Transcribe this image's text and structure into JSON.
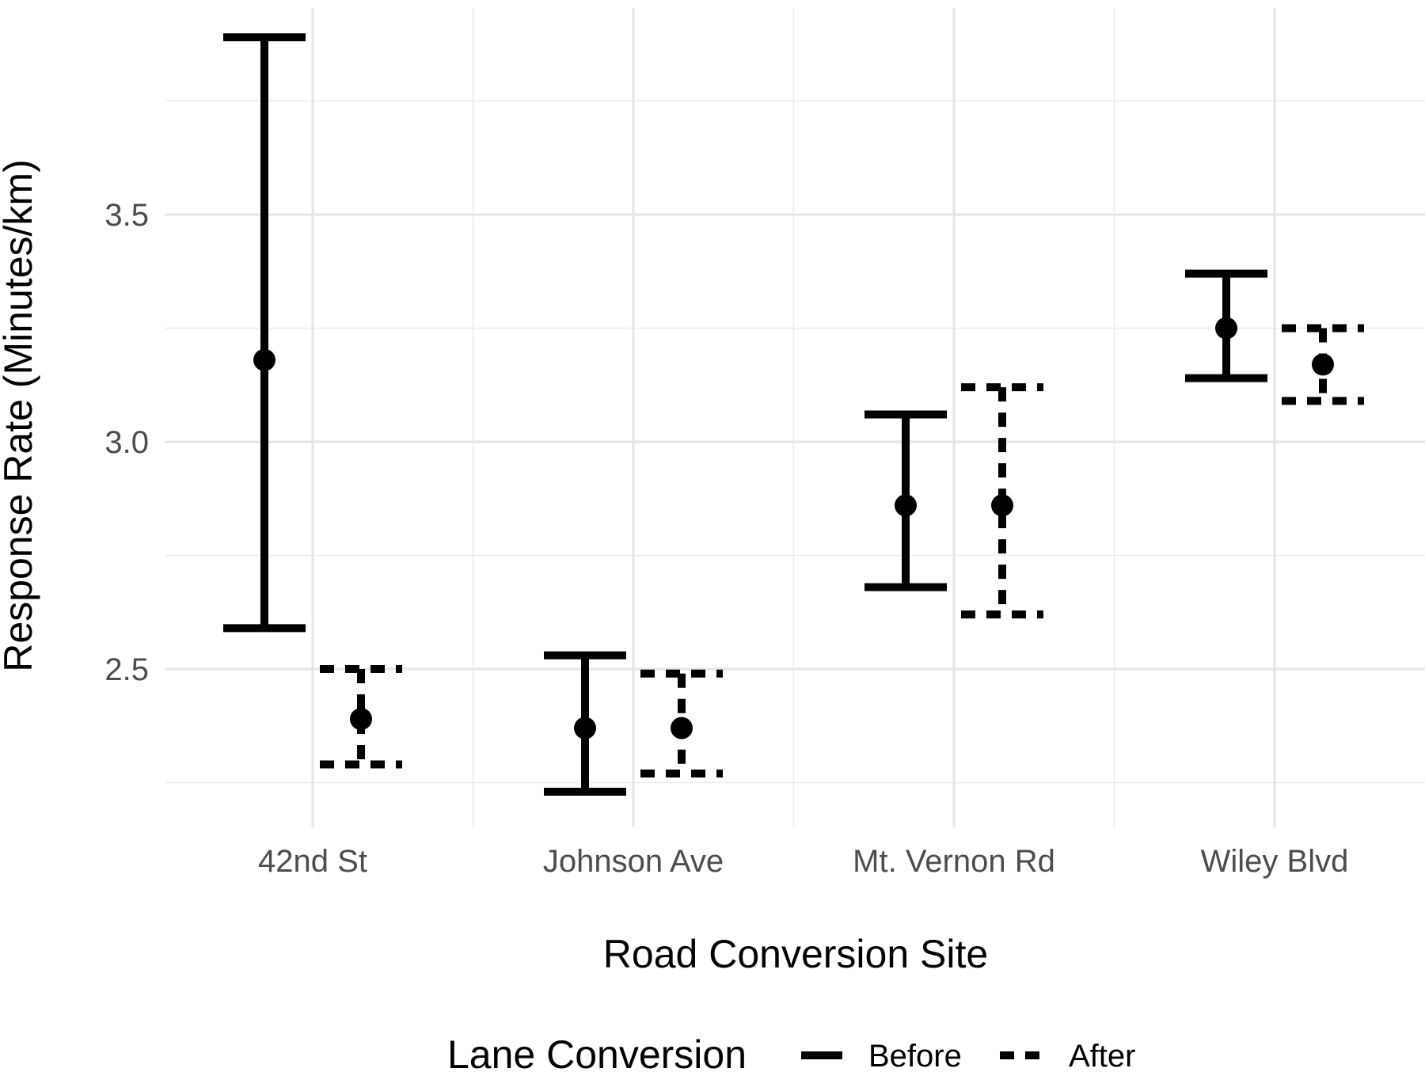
{
  "chart_data": {
    "type": "errorbar",
    "xlabel": "Road Conversion Site",
    "ylabel": "Response Rate (Minutes/km)",
    "categories": [
      "42nd St",
      "Johnson Ave",
      "Mt. Vernon Rd",
      "Wiley Blvd"
    ],
    "y_ticks": [
      "2.5",
      "3.0",
      "3.5"
    ],
    "ylim": [
      2.2,
      3.9
    ],
    "grid": true,
    "legend": {
      "title": "Lane Conversion",
      "position": "bottom"
    },
    "series": [
      {
        "name": "Before",
        "line_style": "solid",
        "color": "#000000",
        "mean": [
          3.18,
          2.37,
          2.86,
          3.25
        ],
        "lower": [
          2.59,
          2.23,
          2.68,
          3.14
        ],
        "upper": [
          3.89,
          2.53,
          3.06,
          3.37
        ]
      },
      {
        "name": "After",
        "line_style": "dashed",
        "color": "#000000",
        "mean": [
          2.39,
          2.37,
          2.86,
          3.17
        ],
        "lower": [
          2.29,
          2.27,
          2.62,
          3.09
        ],
        "upper": [
          2.5,
          2.49,
          3.12,
          3.25
        ]
      }
    ]
  }
}
